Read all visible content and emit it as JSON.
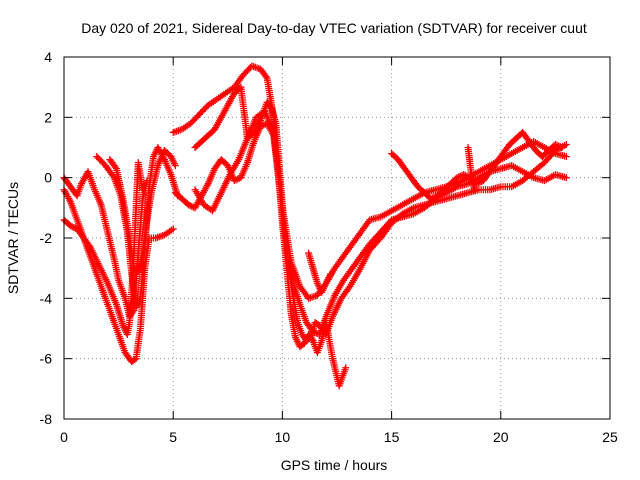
{
  "chart_data": {
    "type": "scatter",
    "title": "Day 020 of 2021, Sidereal Day-to-day VTEC variation (SDTVAR) for receiver cuut",
    "xlabel": "GPS time / hours",
    "ylabel": "SDTVAR / TECUs",
    "xlim": [
      0,
      25
    ],
    "ylim": [
      -8,
      4
    ],
    "xticks": [
      "0",
      "5",
      "10",
      "15",
      "20",
      "25"
    ],
    "yticks": [
      "-8",
      "-6",
      "-4",
      "-2",
      "0",
      "2",
      "4"
    ],
    "grid": true,
    "marker": "+",
    "color": "#ff0000",
    "series": [
      {
        "x": [
          0.0,
          0.3,
          0.6,
          0.9,
          1.2,
          1.6,
          2.0,
          2.4,
          2.8,
          3.1,
          3.3,
          3.5,
          3.7,
          3.9,
          4.2,
          4.6,
          5.0
        ],
        "y": [
          -0.4,
          -0.8,
          -1.4,
          -2.0,
          -2.6,
          -3.4,
          -4.2,
          -5.0,
          -5.8,
          -6.1,
          -6.0,
          -5.0,
          -3.0,
          -2.0,
          -2.0,
          -1.9,
          -1.7
        ]
      },
      {
        "x": [
          0.0,
          0.3,
          0.6,
          0.9,
          1.2,
          1.6,
          2.0,
          2.4,
          2.7,
          2.9,
          3.0,
          3.1,
          3.2,
          3.3,
          3.4,
          3.6
        ],
        "y": [
          -1.4,
          -1.6,
          -1.7,
          -2.0,
          -2.3,
          -2.9,
          -3.5,
          -4.2,
          -4.9,
          -5.2,
          -4.8,
          -3.8,
          -2.5,
          -1.0,
          0.5,
          -0.4
        ]
      },
      {
        "x": [
          0.0,
          0.3,
          0.6,
          0.8,
          1.1,
          1.4,
          1.7,
          2.0,
          2.3,
          2.5,
          2.8,
          3.0,
          3.2,
          3.4,
          3.6,
          3.8
        ],
        "y": [
          0.0,
          -0.3,
          -0.6,
          -0.2,
          0.2,
          -0.4,
          -0.9,
          -1.8,
          -2.7,
          -3.4,
          -4.0,
          -4.6,
          -4.4,
          -2.5,
          -0.7,
          -0.1
        ]
      },
      {
        "x": [
          1.5,
          1.9,
          2.3,
          2.6,
          2.9,
          3.1,
          3.3,
          3.5,
          3.7,
          3.9,
          4.1,
          4.3,
          4.6,
          4.9,
          5.2
        ],
        "y": [
          0.7,
          0.4,
          0.0,
          -0.6,
          -1.8,
          -3.2,
          -4.3,
          -4.0,
          -2.3,
          -0.3,
          0.7,
          1.0,
          0.6,
          0.1,
          -0.6
        ]
      },
      {
        "x": [
          2.1,
          2.4,
          2.7,
          3.0,
          3.2,
          3.4,
          3.6,
          3.8,
          4.0,
          4.3,
          4.6,
          4.9,
          5.1
        ],
        "y": [
          0.6,
          0.3,
          -0.7,
          -2.0,
          -3.0,
          -3.1,
          -2.5,
          -1.4,
          -0.5,
          0.4,
          0.9,
          0.7,
          0.4
        ]
      },
      {
        "x": [
          5.0,
          5.4,
          5.8,
          6.2,
          6.6,
          7.0,
          7.4,
          7.8,
          8.2,
          8.6,
          9.0,
          9.3,
          9.6,
          9.8,
          10.0,
          10.2,
          10.4,
          10.6,
          10.8,
          11.0,
          11.2,
          11.4,
          11.6,
          11.8,
          12.0,
          12.3,
          12.6,
          12.9
        ],
        "y": [
          1.5,
          1.6,
          1.8,
          2.1,
          2.4,
          2.6,
          2.8,
          3.0,
          3.4,
          3.7,
          3.6,
          3.3,
          2.0,
          0.3,
          -1.5,
          -3.0,
          -4.5,
          -5.3,
          -5.6,
          -5.5,
          -5.2,
          -5.4,
          -5.8,
          -5.4,
          -4.8,
          -6.0,
          -6.9,
          -6.3
        ]
      },
      {
        "x": [
          6.0,
          6.3,
          6.6,
          6.9,
          7.2,
          7.5,
          7.8,
          8.1,
          8.4,
          8.7,
          9.0,
          9.3,
          9.5,
          9.7,
          9.9,
          10.1,
          10.3,
          10.5,
          10.7,
          10.9,
          11.1,
          11.3,
          11.5,
          11.7,
          12.0,
          12.3,
          12.7,
          13.1,
          13.5,
          14.0,
          14.5,
          15.0,
          15.5,
          16.0,
          16.5,
          17.0,
          17.5,
          18.0,
          18.5,
          19.0,
          19.5,
          20.0,
          20.5,
          21.0,
          21.5,
          22.0,
          22.5,
          23.0
        ],
        "y": [
          1.0,
          1.2,
          1.4,
          1.6,
          2.0,
          2.4,
          2.8,
          3.0,
          1.3,
          1.5,
          1.9,
          2.5,
          2.3,
          1.8,
          0.0,
          -1.8,
          -3.0,
          -4.0,
          -4.8,
          -5.2,
          -5.4,
          -5.3,
          -4.8,
          -4.9,
          -5.2,
          -4.6,
          -4.0,
          -3.6,
          -3.1,
          -2.4,
          -2.0,
          -1.5,
          -1.2,
          -1.0,
          -0.9,
          -0.8,
          -0.7,
          -0.6,
          -0.5,
          -0.4,
          -0.4,
          -0.3,
          -0.3,
          -0.1,
          0.2,
          0.5,
          0.9,
          1.1
        ]
      },
      {
        "x": [
          5.1,
          5.4,
          5.7,
          6.0,
          6.3,
          6.6,
          6.9,
          7.2,
          7.5,
          7.8,
          8.1,
          8.4,
          8.7,
          9.0,
          9.3,
          9.6,
          9.9,
          10.2,
          10.5,
          10.8,
          11.1,
          11.4,
          11.7,
          12.0,
          12.4,
          12.8,
          13.2,
          13.6,
          14.0,
          14.5,
          15.0,
          15.5,
          16.0,
          16.5,
          17.0,
          17.5,
          18.0,
          18.5,
          19.0,
          19.5,
          20.0,
          20.5,
          21.0,
          21.5,
          22.0,
          22.5,
          23.0
        ],
        "y": [
          -0.5,
          -0.7,
          -0.9,
          -1.0,
          -0.6,
          -0.2,
          0.3,
          0.6,
          0.4,
          -0.1,
          0.0,
          0.5,
          1.2,
          1.7,
          1.8,
          1.4,
          -0.5,
          -2.5,
          -3.5,
          -4.2,
          -4.8,
          -5.1,
          -5.2,
          -4.6,
          -3.9,
          -3.4,
          -3.0,
          -2.6,
          -2.2,
          -1.8,
          -1.4,
          -1.3,
          -1.2,
          -1.0,
          -0.7,
          -0.5,
          -0.3,
          -0.2,
          0.0,
          0.2,
          0.3,
          0.4,
          0.2,
          0.0,
          -0.1,
          0.1,
          0.0
        ]
      },
      {
        "x": [
          6.0,
          6.4,
          6.8,
          7.2,
          7.6,
          8.0,
          8.4,
          8.8,
          9.2,
          9.6,
          10.0,
          10.4,
          10.8,
          11.2,
          11.6,
          12.0,
          12.4,
          12.8,
          13.2,
          13.6,
          14.0,
          14.5,
          15.0,
          15.5,
          16.0,
          16.5,
          17.0,
          17.5,
          18.0,
          18.5,
          19.0,
          19.5,
          20.0,
          20.5,
          21.0,
          21.5,
          22.0,
          22.5,
          23.0
        ],
        "y": [
          -0.4,
          -0.9,
          -1.1,
          -0.5,
          0.1,
          0.6,
          1.3,
          2.0,
          2.2,
          1.5,
          -1.0,
          -2.8,
          -3.6,
          -4.0,
          -3.9,
          -3.5,
          -3.0,
          -2.6,
          -2.2,
          -1.8,
          -1.4,
          -1.3,
          -1.1,
          -0.9,
          -0.7,
          -0.5,
          -0.4,
          -0.3,
          -0.2,
          0.0,
          0.2,
          0.4,
          0.6,
          0.8,
          1.0,
          1.2,
          1.0,
          0.8,
          0.7
        ]
      },
      {
        "x": [
          15.0,
          15.3,
          15.6,
          15.9,
          16.2,
          16.5,
          16.8,
          17.1,
          17.4,
          17.7,
          18.0,
          18.3,
          18.6,
          18.9,
          19.2,
          19.5,
          19.8,
          20.1,
          20.4,
          20.7,
          21.0,
          21.3,
          21.6,
          21.9,
          22.2,
          22.5,
          22.8
        ],
        "y": [
          0.8,
          0.6,
          0.3,
          0.0,
          -0.3,
          -0.5,
          -0.7,
          -0.6,
          -0.4,
          -0.2,
          0.0,
          0.1,
          0.0,
          -0.2,
          -0.1,
          0.2,
          0.5,
          0.8,
          1.1,
          1.3,
          1.5,
          1.2,
          0.9,
          0.7,
          0.9,
          1.1,
          1.0
        ]
      },
      {
        "x": [
          11.2,
          11.4,
          11.6,
          11.8,
          12.0,
          12.2
        ],
        "y": [
          -2.5,
          -3.0,
          -3.5,
          -3.8,
          -3.5,
          -3.2
        ]
      },
      {
        "x": [
          18.5,
          18.6,
          18.7,
          18.8
        ],
        "y": [
          1.0,
          0.4,
          -0.1,
          -0.4
        ]
      }
    ]
  }
}
